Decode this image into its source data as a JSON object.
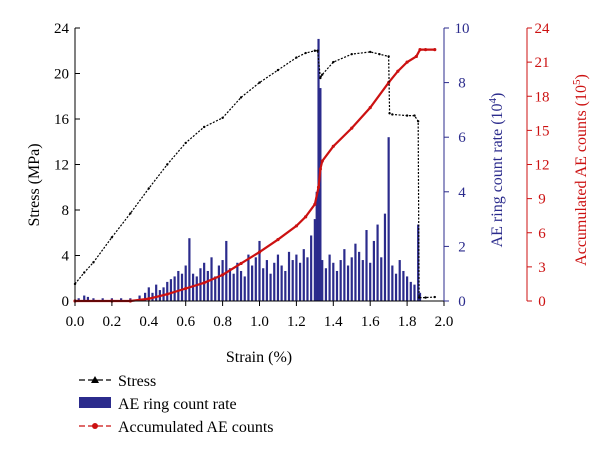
{
  "chart_data": {
    "type": "line",
    "xlabel": "Strain (%)",
    "xlim": [
      0,
      2.0
    ],
    "xticks": [
      "0.0",
      "0.2",
      "0.4",
      "0.6",
      "0.8",
      "1.0",
      "1.2",
      "1.4",
      "1.6",
      "1.8",
      "2.0"
    ],
    "xtick_values": [
      0,
      0.2,
      0.4,
      0.6,
      0.8,
      1.0,
      1.2,
      1.4,
      1.6,
      1.8,
      2.0
    ],
    "axes": {
      "left": {
        "label": "Stress (MPa)",
        "ylim": [
          0,
          24
        ],
        "ticks": [
          "0",
          "4",
          "8",
          "12",
          "16",
          "20",
          "24"
        ],
        "tick_values": [
          0,
          4,
          8,
          12,
          16,
          20,
          24
        ],
        "color": "#000000"
      },
      "right1": {
        "label_main": "AE ring count rate (10",
        "label_sup": "4",
        "label_end": ")",
        "ylim": [
          0,
          10
        ],
        "ticks": [
          "0",
          "2",
          "4",
          "6",
          "8",
          "10"
        ],
        "tick_values": [
          0,
          2,
          4,
          6,
          8,
          10
        ],
        "color": "#2b2b8c"
      },
      "right2": {
        "label_main": "Accumulated AE counts (10",
        "label_sup": "5",
        "label_end": ")",
        "ylim": [
          0,
          24
        ],
        "ticks": [
          "0",
          "3",
          "6",
          "9",
          "12",
          "15",
          "18",
          "21",
          "24"
        ],
        "tick_values": [
          0,
          3,
          6,
          9,
          12,
          15,
          18,
          21,
          24
        ],
        "color": "#cc1111"
      }
    },
    "series": [
      {
        "name": "Stress",
        "type": "line",
        "axis": "left",
        "color": "#000000",
        "x": [
          0.0,
          0.05,
          0.1,
          0.2,
          0.3,
          0.4,
          0.5,
          0.6,
          0.7,
          0.8,
          0.9,
          1.0,
          1.1,
          1.2,
          1.25,
          1.3,
          1.315,
          1.33,
          1.34,
          1.4,
          1.5,
          1.6,
          1.65,
          1.7,
          1.705,
          1.72,
          1.8,
          1.84,
          1.86,
          1.865,
          1.9,
          1.95
        ],
        "y": [
          1.5,
          2.5,
          3.4,
          5.6,
          7.7,
          9.9,
          12.0,
          13.9,
          15.3,
          16.1,
          17.9,
          19.2,
          20.3,
          21.4,
          21.8,
          22.0,
          22.0,
          19.6,
          19.9,
          21.0,
          21.7,
          21.9,
          21.7,
          21.5,
          16.5,
          16.4,
          16.3,
          16.3,
          15.8,
          0.3,
          0.3,
          0.35
        ]
      },
      {
        "name": "AE ring count rate",
        "type": "bar",
        "axis": "right1",
        "color": "#2b2b8c",
        "x": [
          0.02,
          0.05,
          0.07,
          0.1,
          0.15,
          0.2,
          0.25,
          0.3,
          0.35,
          0.38,
          0.4,
          0.42,
          0.44,
          0.46,
          0.48,
          0.5,
          0.52,
          0.54,
          0.56,
          0.58,
          0.6,
          0.62,
          0.64,
          0.66,
          0.68,
          0.7,
          0.72,
          0.74,
          0.76,
          0.78,
          0.8,
          0.82,
          0.84,
          0.86,
          0.88,
          0.9,
          0.92,
          0.94,
          0.96,
          0.98,
          1.0,
          1.02,
          1.04,
          1.06,
          1.08,
          1.1,
          1.12,
          1.14,
          1.16,
          1.18,
          1.2,
          1.22,
          1.24,
          1.26,
          1.28,
          1.3,
          1.31,
          1.32,
          1.33,
          1.34,
          1.36,
          1.38,
          1.4,
          1.42,
          1.44,
          1.46,
          1.48,
          1.5,
          1.52,
          1.54,
          1.56,
          1.58,
          1.6,
          1.62,
          1.64,
          1.66,
          1.68,
          1.7,
          1.72,
          1.74,
          1.76,
          1.78,
          1.8,
          1.82,
          1.84,
          1.86,
          1.87
        ],
        "y": [
          0.1,
          0.2,
          0.15,
          0.1,
          0.1,
          0.1,
          0.1,
          0.1,
          0.2,
          0.3,
          0.5,
          0.3,
          0.6,
          0.4,
          0.5,
          0.7,
          0.8,
          0.9,
          1.1,
          1.0,
          1.3,
          2.3,
          1.0,
          0.9,
          1.2,
          1.4,
          1.1,
          1.6,
          0.9,
          1.3,
          1.5,
          2.2,
          1.2,
          1.0,
          1.4,
          1.1,
          0.9,
          1.7,
          1.3,
          1.6,
          2.2,
          1.2,
          1.5,
          1.0,
          1.4,
          1.7,
          1.3,
          1.1,
          1.8,
          1.5,
          1.7,
          1.4,
          1.9,
          1.6,
          2.4,
          3.0,
          4.0,
          9.6,
          7.8,
          1.5,
          1.2,
          1.7,
          1.4,
          1.1,
          1.5,
          1.9,
          1.3,
          1.6,
          2.1,
          1.8,
          1.5,
          2.6,
          1.4,
          2.2,
          2.8,
          1.6,
          3.2,
          6.0,
          1.3,
          1.0,
          1.5,
          1.1,
          0.9,
          0.7,
          0.6,
          2.8,
          0.3
        ]
      },
      {
        "name": "Accumulated AE counts",
        "type": "line",
        "axis": "right2",
        "color": "#cc1111",
        "x": [
          0.0,
          0.2,
          0.3,
          0.4,
          0.5,
          0.6,
          0.7,
          0.8,
          0.9,
          1.0,
          1.1,
          1.2,
          1.25,
          1.3,
          1.32,
          1.33,
          1.34,
          1.4,
          1.5,
          1.6,
          1.7,
          1.75,
          1.8,
          1.85,
          1.87,
          1.9,
          1.95
        ],
        "y": [
          0.0,
          0.0,
          0.0,
          0.2,
          0.6,
          1.1,
          1.6,
          2.3,
          3.3,
          4.3,
          5.4,
          6.6,
          7.4,
          8.5,
          10.0,
          11.6,
          12.3,
          13.6,
          15.2,
          17.0,
          19.2,
          20.2,
          21.0,
          21.5,
          22.1,
          22.1,
          22.1
        ]
      }
    ]
  }
}
